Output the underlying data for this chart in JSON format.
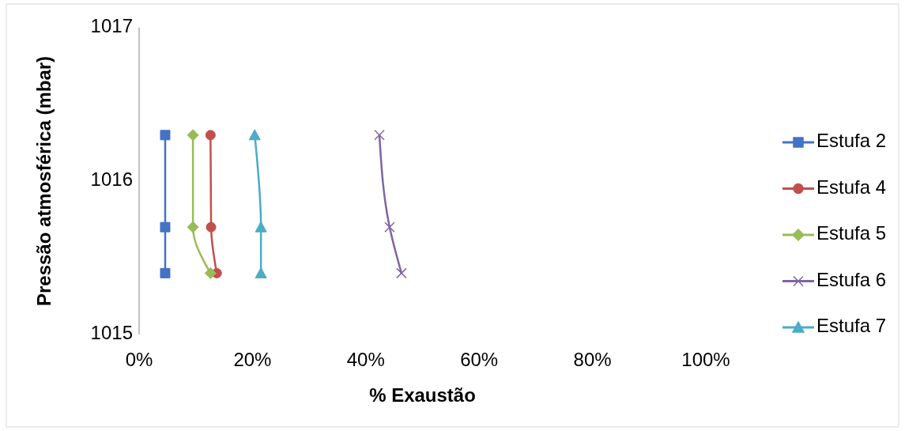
{
  "chart_data": {
    "type": "line",
    "xlabel": "% Exaustão",
    "ylabel": "Pressão atmosférica (mbar)",
    "xlim": [
      0,
      1
    ],
    "xticks": [
      {
        "value": 0,
        "label": "0%"
      },
      {
        "value": 0.2,
        "label": "20%"
      },
      {
        "value": 0.4,
        "label": "40%"
      },
      {
        "value": 0.6,
        "label": "60%"
      },
      {
        "value": 0.8,
        "label": "80%"
      },
      {
        "value": 1,
        "label": "100%"
      }
    ],
    "ylim": [
      1015,
      1017
    ],
    "yticks": [
      1015,
      1016,
      1017
    ],
    "grid": false,
    "legend": "right",
    "line_style": "solid",
    "series": [
      {
        "name": "Estufa 2",
        "color": "#4472c4",
        "marker": "square",
        "x": [
          0.046,
          0.046,
          0.046
        ],
        "values": [
          1016.3,
          1015.7,
          1015.4
        ]
      },
      {
        "name": "Estufa 4",
        "color": "#c0504d",
        "marker": "circle",
        "x": [
          0.126,
          0.127,
          0.137
        ],
        "values": [
          1016.3,
          1015.7,
          1015.4
        ]
      },
      {
        "name": "Estufa 5",
        "color": "#9bbb59",
        "marker": "diamond",
        "x": [
          0.095,
          0.095,
          0.126
        ],
        "values": [
          1016.3,
          1015.7,
          1015.4
        ]
      },
      {
        "name": "Estufa 6",
        "color": "#8064a2",
        "marker": "cross",
        "x": [
          0.424,
          0.442,
          0.463
        ],
        "values": [
          1016.3,
          1015.7,
          1015.4
        ]
      },
      {
        "name": "Estufa 7",
        "color": "#4bacc6",
        "marker": "triangle",
        "x": [
          0.204,
          0.215,
          0.215
        ],
        "values": [
          1016.3,
          1015.7,
          1015.4
        ]
      }
    ]
  }
}
